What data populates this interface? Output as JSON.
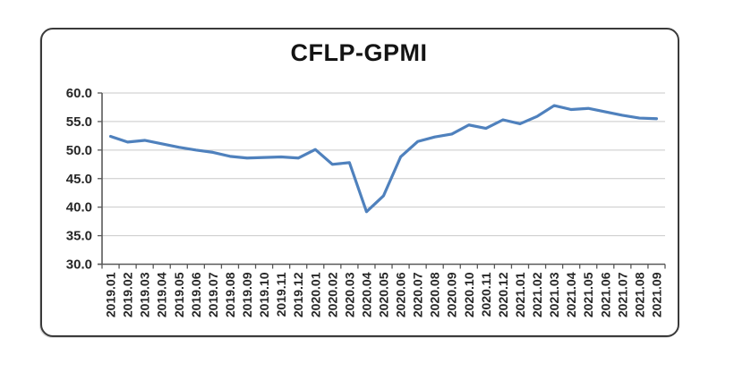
{
  "window": {
    "background": "#ffffff",
    "frame_border_color": "#3a3a3a"
  },
  "chart_data": {
    "type": "line",
    "title": "CFLP-GPMI",
    "xlabel": "",
    "ylabel": "",
    "legend": "none",
    "grid": "horizontal",
    "ylim": [
      30,
      60
    ],
    "ytick_step": 5,
    "ytick_labels": [
      "60.0",
      "55.0",
      "50.0",
      "45.0",
      "40.0",
      "35.0",
      "30.0"
    ],
    "categories": [
      "2019.01",
      "2019.02",
      "2019.03",
      "2019.04",
      "2019.05",
      "2019.06",
      "2019.07",
      "2019.08",
      "2019.09",
      "2019.10",
      "2019.11",
      "2019.12",
      "2020.01",
      "2020.02",
      "2020.03",
      "2020.04",
      "2020.05",
      "2020.06",
      "2020.07",
      "2020.08",
      "2020.09",
      "2020.10",
      "2020.11",
      "2020.12",
      "2021.01",
      "2021.02",
      "2021.03",
      "2021.04",
      "2021.05",
      "2021.06",
      "2021.07",
      "2021.08",
      "2021.09"
    ],
    "series": [
      {
        "name": "CFLP-GPMI",
        "color": "#4f81bd",
        "values": [
          52.4,
          51.4,
          51.7,
          51.1,
          50.5,
          50.0,
          49.6,
          48.9,
          48.6,
          48.7,
          48.8,
          48.6,
          50.1,
          47.5,
          47.8,
          39.2,
          42.0,
          48.8,
          51.5,
          52.3,
          52.8,
          54.4,
          53.8,
          55.3,
          54.6,
          55.9,
          57.8,
          57.1,
          57.3,
          56.7,
          56.1,
          55.6,
          55.5
        ]
      }
    ],
    "axis_color": "#595959",
    "gridline_color": "#c9c9c9",
    "tick_label_color": "#262626"
  }
}
